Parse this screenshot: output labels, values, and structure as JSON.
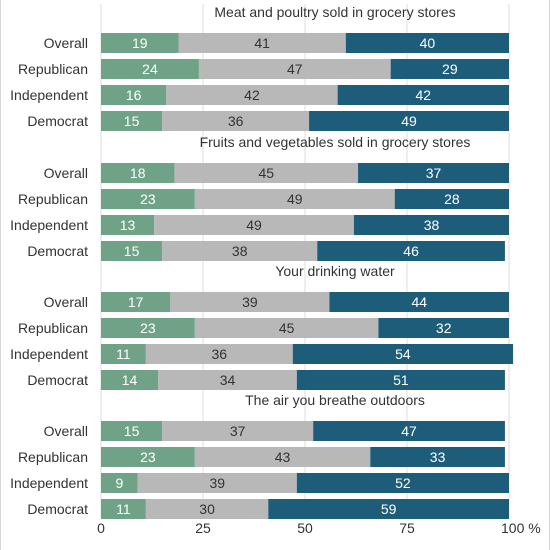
{
  "chart_data": {
    "type": "bar",
    "orientation": "horizontal",
    "stacked": true,
    "xlim": [
      0,
      100
    ],
    "x_ticks": [
      "0",
      "25",
      "50",
      "75",
      "100 %"
    ],
    "grid": true,
    "categories": [
      "Overall",
      "Republican",
      "Independent",
      "Democrat"
    ],
    "colors": [
      "#6fa287",
      "#b8b8b8",
      "#1d5d7a"
    ],
    "label_colors": [
      "#ffffff",
      "#333333",
      "#ffffff"
    ],
    "panels": [
      {
        "title": "Meat and poultry sold in grocery stores",
        "values": [
          [
            19,
            41,
            40
          ],
          [
            24,
            47,
            29
          ],
          [
            16,
            42,
            42
          ],
          [
            15,
            36,
            49
          ]
        ]
      },
      {
        "title": "Fruits and vegetables sold in grocery stores",
        "values": [
          [
            18,
            45,
            37
          ],
          [
            23,
            49,
            28
          ],
          [
            13,
            49,
            38
          ],
          [
            15,
            38,
            46
          ]
        ]
      },
      {
        "title": "Your drinking water",
        "values": [
          [
            17,
            39,
            44
          ],
          [
            23,
            45,
            32
          ],
          [
            11,
            36,
            54
          ],
          [
            14,
            34,
            51
          ]
        ]
      },
      {
        "title": "The air you breathe outdoors",
        "values": [
          [
            15,
            37,
            47
          ],
          [
            23,
            43,
            33
          ],
          [
            9,
            39,
            52
          ],
          [
            11,
            30,
            59
          ]
        ]
      }
    ]
  }
}
